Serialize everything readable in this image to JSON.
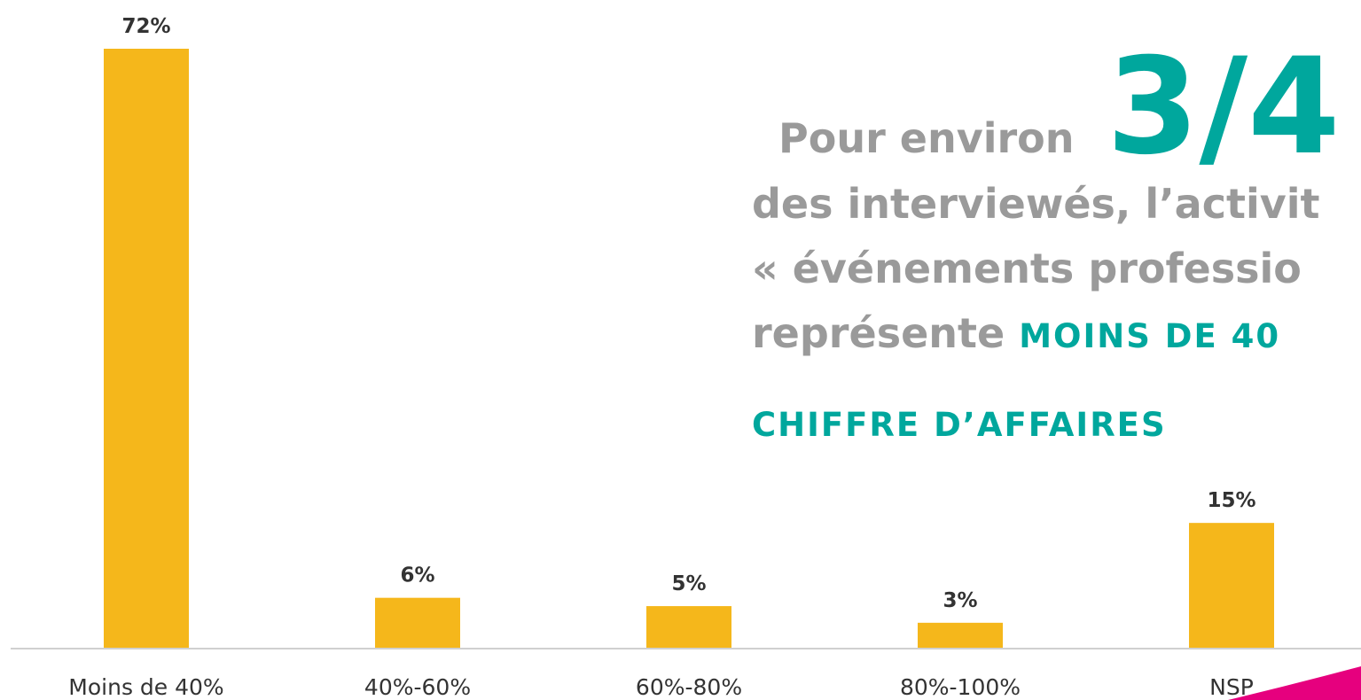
{
  "chart_data": {
    "type": "bar",
    "categories": [
      "Moins de 40%",
      "40%-60%",
      "60%-80%",
      "80%-100%",
      "NSP"
    ],
    "values": [
      72,
      6,
      5,
      3,
      15
    ],
    "value_labels": [
      "72%",
      "6%",
      "5%",
      "3%",
      "15%"
    ],
    "color": "#f5b71b",
    "annotation": {
      "lead": "Pour environ",
      "highlight": "3/4",
      "line2": "des interviewés, l’activit",
      "line3": "« événements professio",
      "line4": "représente ",
      "emphasis1": "MOINS DE 40",
      "emphasis2": "CHIFFRE D’AFFAIRES"
    }
  }
}
